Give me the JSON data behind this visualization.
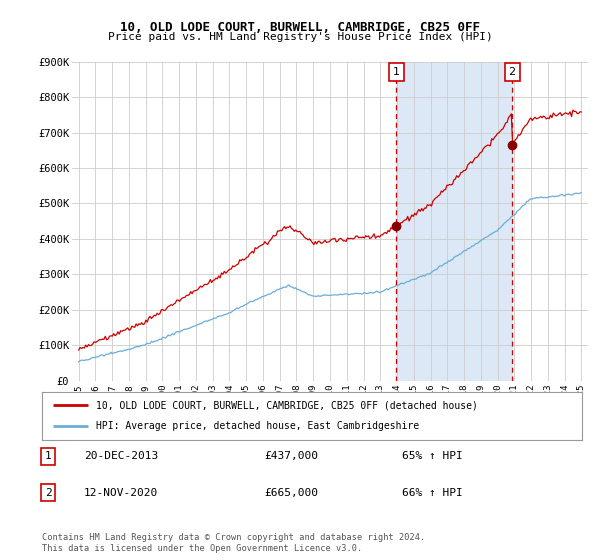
{
  "title": "10, OLD LODE COURT, BURWELL, CAMBRIDGE, CB25 0FF",
  "subtitle": "Price paid vs. HM Land Registry's House Price Index (HPI)",
  "ylim": [
    0,
    900000
  ],
  "yticks": [
    0,
    100000,
    200000,
    300000,
    400000,
    500000,
    600000,
    700000,
    800000,
    900000
  ],
  "ytick_labels": [
    "£0",
    "£100K",
    "£200K",
    "£300K",
    "£400K",
    "£500K",
    "£600K",
    "£700K",
    "£800K",
    "£900K"
  ],
  "hpi_color": "#6baed6",
  "price_color": "#cc0000",
  "sale1_x": 2013.96,
  "sale1_y": 437000,
  "sale2_x": 2020.87,
  "sale2_y": 665000,
  "legend_line1": "10, OLD LODE COURT, BURWELL, CAMBRIDGE, CB25 0FF (detached house)",
  "legend_line2": "HPI: Average price, detached house, East Cambridgeshire",
  "annotation1_num": "1",
  "annotation1_date": "20-DEC-2013",
  "annotation1_price": "£437,000",
  "annotation1_hpi": "65% ↑ HPI",
  "annotation2_num": "2",
  "annotation2_date": "12-NOV-2020",
  "annotation2_price": "£665,000",
  "annotation2_hpi": "66% ↑ HPI",
  "footnote": "Contains HM Land Registry data © Crown copyright and database right 2024.\nThis data is licensed under the Open Government Licence v3.0.",
  "bg_color": "#ffffff",
  "plot_bg_color": "#ffffff",
  "grid_color": "#cccccc",
  "span_color": "#dce8f5",
  "xmin": 1995,
  "xmax": 2025
}
